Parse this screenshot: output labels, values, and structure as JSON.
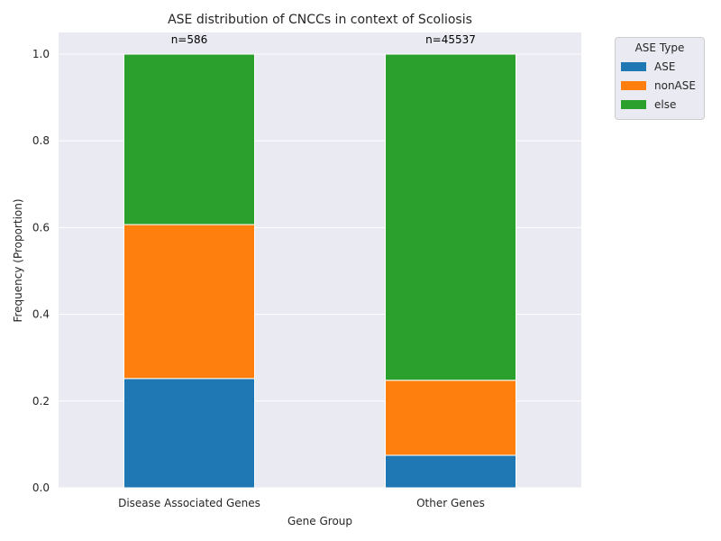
{
  "chart_data": {
    "type": "bar",
    "stacked": true,
    "title": "ASE distribution of CNCCs in context of Scoliosis",
    "xlabel": "Gene Group",
    "ylabel": "Frequency (Proportion)",
    "ylim": [
      0,
      1.05
    ],
    "yticks": [
      "0.0",
      "0.2",
      "0.4",
      "0.6",
      "0.8",
      "1.0"
    ],
    "grid": true,
    "categories": [
      "Disease Associated Genes",
      "Other Genes"
    ],
    "bar_annotations": [
      "n=586",
      "n=45537"
    ],
    "series": [
      {
        "name": "ASE",
        "color": "#1f77b4",
        "values": [
          0.252,
          0.075
        ]
      },
      {
        "name": "nonASE",
        "color": "#ff7f0e",
        "values": [
          0.355,
          0.173
        ]
      },
      {
        "name": "else",
        "color": "#2ca02c",
        "values": [
          0.393,
          0.752
        ]
      }
    ],
    "legend": {
      "title": "ASE Type",
      "placement": "outside-top-right"
    }
  }
}
